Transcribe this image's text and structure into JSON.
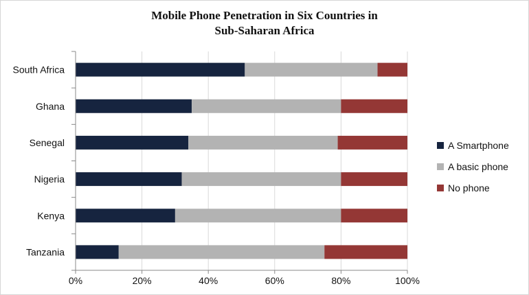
{
  "chart_data": {
    "type": "bar",
    "orientation": "horizontal",
    "stacked": true,
    "title": [
      "Mobile Phone Penetration in Six Countries in",
      "Sub-Saharan Africa"
    ],
    "categories": [
      "South Africa",
      "Ghana",
      "Senegal",
      "Nigeria",
      "Kenya",
      "Tanzania"
    ],
    "series": [
      {
        "name": "A Smartphone",
        "color": "#16243f",
        "values": [
          51,
          35,
          34,
          32,
          30,
          13
        ]
      },
      {
        "name": "A basic phone",
        "color": "#b3b3b3",
        "values": [
          40,
          45,
          45,
          48,
          50,
          62
        ]
      },
      {
        "name": "No phone",
        "color": "#943735",
        "values": [
          9,
          20,
          21,
          20,
          20,
          25
        ]
      }
    ],
    "xlim": [
      0,
      100
    ],
    "x_ticks": [
      0,
      20,
      40,
      60,
      80,
      100
    ],
    "x_tick_labels": [
      "0%",
      "20%",
      "40%",
      "60%",
      "80%",
      "100%"
    ],
    "grid": true,
    "legend_position": "right"
  }
}
